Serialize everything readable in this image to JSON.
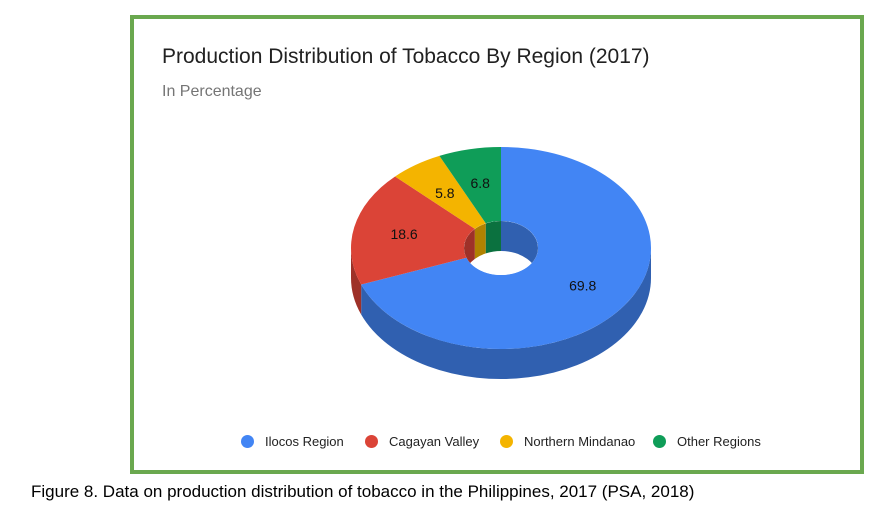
{
  "chart_data": {
    "type": "pie",
    "title": "Production Distribution of Tobacco By Region (2017)",
    "subtitle": "In Percentage",
    "donut": true,
    "three_d": true,
    "legend_position": "bottom",
    "categories": [
      "Ilocos Region",
      "Cagayan Valley",
      "Northern Mindanao",
      "Other Regions"
    ],
    "values": [
      69.8,
      18.6,
      5.8,
      6.8
    ],
    "data_labels": [
      "69.8",
      "18.6",
      "5.8",
      "6.8"
    ],
    "colors": [
      "#4285f4",
      "#db4437",
      "#f4b400",
      "#0f9d58"
    ]
  },
  "caption": "Figure 8. Data on production distribution of tobacco in the Philippines, 2017 (PSA, 2018)",
  "frame_color": "#6aa84f"
}
